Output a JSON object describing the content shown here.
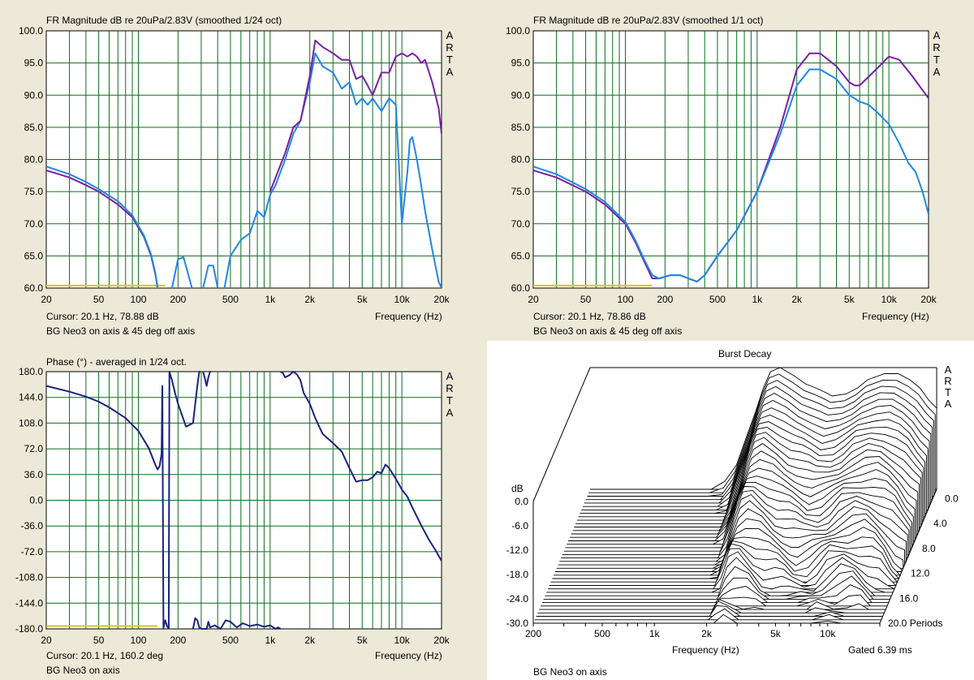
{
  "chart_data": [
    {
      "type": "line",
      "title": "FR Magnitude dB re 20uPa/2.83V (smoothed 1/24 oct)",
      "xlabel": "Frequency (Hz)",
      "ylabel": "",
      "x_scale": "log",
      "xlim": [
        20,
        20000
      ],
      "ylim": [
        60,
        100
      ],
      "x_ticks": [
        "20",
        "50",
        "100",
        "200",
        "500",
        "1k",
        "2k",
        "5k",
        "10k",
        "20k"
      ],
      "y_ticks": [
        "100.0",
        "95.0",
        "90.0",
        "85.0",
        "80.0",
        "75.0",
        "70.0",
        "65.0",
        "60.0"
      ],
      "brand": "A R T A",
      "cursor": "Cursor: 20.1 Hz, 78.88 dB",
      "caption": "BG Neo3 on axis & 45 deg off axis",
      "series": [
        {
          "color": "#7B1FA2",
          "x": [
            20,
            30,
            40,
            50,
            70,
            90,
            110,
            125,
            135,
            140
          ],
          "y": [
            78.3,
            77.2,
            76.0,
            75.0,
            73.0,
            71.0,
            68.0,
            65.0,
            62.0,
            60.0
          ]
        },
        {
          "color": "#1E88E5",
          "x": [
            20,
            30,
            40,
            50,
            70,
            90,
            110,
            125,
            135,
            140
          ],
          "y": [
            78.9,
            77.7,
            76.5,
            75.4,
            73.5,
            71.3,
            68.2,
            65.2,
            62.2,
            60.0
          ]
        },
        {
          "color": "#1E88E5",
          "x": [
            180,
            200,
            220,
            240,
            255
          ],
          "y": [
            60,
            64.5,
            64.8,
            62,
            60
          ]
        },
        {
          "color": "#1E88E5",
          "x": [
            310,
            340,
            370,
            400
          ],
          "y": [
            60,
            63.5,
            63.5,
            60
          ]
        },
        {
          "color": "#1E88E5",
          "x": [
            450,
            500,
            600,
            700,
            800,
            900,
            1000,
            1100,
            1300,
            1500,
            1700,
            2000,
            2200,
            2500,
            3000,
            3500,
            4000,
            4500,
            5000,
            5500,
            6000,
            7000,
            8000,
            8500,
            9000,
            10000,
            11000,
            11500,
            12000,
            13000,
            14000,
            15000,
            17000,
            19000,
            20000
          ],
          "y": [
            60,
            65,
            67.5,
            68.5,
            72,
            71,
            74.5,
            76,
            80,
            84,
            86,
            92,
            96.5,
            94.5,
            93.5,
            91,
            92,
            88.5,
            89.5,
            88.5,
            89.5,
            87.5,
            89.5,
            89,
            88.5,
            70,
            78,
            83,
            83.5,
            80,
            76,
            72,
            66,
            61,
            60
          ]
        },
        {
          "color": "#7B1FA2",
          "x": [
            1000,
            1300,
            1500,
            1700,
            2000,
            2200,
            2500,
            3000,
            3500,
            4000,
            4500,
            5000,
            5500,
            6000,
            7000,
            8000,
            9000,
            10000,
            11000,
            12000,
            13000,
            14000,
            15000,
            17000,
            19000,
            20000
          ],
          "y": [
            75,
            81,
            85,
            86,
            93,
            98.5,
            97.5,
            96.5,
            95.5,
            95.5,
            92.5,
            93,
            91.5,
            90,
            93.5,
            93.5,
            96,
            96.5,
            96,
            96.5,
            96,
            95,
            95.5,
            92,
            88,
            84
          ]
        }
      ],
      "reference_line": {
        "color": "#D4C71A",
        "x": [
          20,
          160
        ],
        "y": [
          60.4,
          60.4
        ]
      }
    },
    {
      "type": "line",
      "title": "FR Magnitude dB re 20uPa/2.83V (smoothed 1/1 oct)",
      "xlabel": "Frequency (Hz)",
      "ylabel": "",
      "x_scale": "log",
      "xlim": [
        20,
        20000
      ],
      "ylim": [
        60,
        100
      ],
      "x_ticks": [
        "20",
        "50",
        "100",
        "200",
        "500",
        "1k",
        "2k",
        "5k",
        "10k",
        "20k"
      ],
      "y_ticks": [
        "100.0",
        "95.0",
        "90.0",
        "85.0",
        "80.0",
        "75.0",
        "70.0",
        "65.0",
        "60.0"
      ],
      "brand": "A R T A",
      "cursor": "Cursor: 20.1 Hz, 78.86 dB",
      "caption": "BG Neo3 on axis & 45 deg off axis",
      "series": [
        {
          "color": "#7B1FA2",
          "x": [
            20,
            30,
            50,
            70,
            100,
            120,
            140,
            160,
            180,
            220,
            260,
            300,
            350,
            400,
            500,
            700,
            1000,
            1500,
            2000,
            2500,
            3000,
            4000,
            5000,
            5500,
            6000,
            8000,
            10000,
            12000,
            15000,
            20000
          ],
          "y": [
            78.3,
            77.2,
            75,
            73,
            70,
            67,
            64,
            61.5,
            61.5,
            62,
            62,
            61.5,
            61,
            62,
            65,
            69,
            75,
            85,
            94,
            96.5,
            96.5,
            94.5,
            92,
            91.5,
            91.5,
            94,
            96,
            95.5,
            93,
            89.5
          ]
        },
        {
          "color": "#1E88E5",
          "x": [
            20,
            30,
            50,
            70,
            100,
            120,
            140,
            160,
            180,
            220,
            260,
            300,
            350,
            400,
            500,
            700,
            1000,
            1500,
            2000,
            2500,
            3000,
            4000,
            5000,
            6000,
            7000,
            8000,
            10000,
            12000,
            14000,
            16000,
            18000,
            20000
          ],
          "y": [
            78.9,
            77.7,
            75.4,
            73.4,
            70.3,
            67.3,
            64.3,
            62,
            61.5,
            62,
            62,
            61.5,
            61,
            62,
            65,
            69,
            75,
            84,
            91.5,
            94,
            94,
            92.5,
            90,
            89,
            88.5,
            87.5,
            85.5,
            82.5,
            79.5,
            78,
            75,
            71.5
          ]
        }
      ],
      "reference_line": {
        "color": "#D4C71A",
        "x": [
          20,
          160
        ],
        "y": [
          60.4,
          60.4
        ]
      }
    },
    {
      "type": "line",
      "title": "Phase (°) - averaged in 1/24 oct.",
      "xlabel": "Frequency (Hz)",
      "ylabel": "",
      "x_scale": "log",
      "xlim": [
        20,
        20000
      ],
      "ylim": [
        -180,
        180
      ],
      "x_ticks": [
        "20",
        "50",
        "100",
        "200",
        "500",
        "1k",
        "2k",
        "5k",
        "10k",
        "20k"
      ],
      "y_ticks": [
        "180.0",
        "144.0",
        "108.0",
        "72.0",
        "36.0",
        "0.0",
        "-36.0",
        "-72.0",
        "-108.0",
        "-144.0",
        "-180.0"
      ],
      "brand": "A R T A",
      "cursor": "Cursor: 20.1 Hz, 160.2 deg",
      "caption": "BG Neo3 on axis",
      "series": [
        {
          "color": "#1A237E",
          "x": [
            20,
            30,
            40,
            50,
            60,
            80,
            100,
            120,
            135,
            140,
            145,
            150,
            152,
            155
          ],
          "y": [
            160,
            152,
            145,
            138,
            130,
            115,
            97,
            73,
            49,
            43,
            48,
            65,
            160,
            -180
          ]
        },
        {
          "color": "#1A237E",
          "x": [
            155,
            160,
            165,
            170
          ],
          "y": [
            -178,
            -168,
            -176,
            -180
          ]
        },
        {
          "color": "#1A237E",
          "x": [
            170,
            172,
            180,
            190,
            200,
            230,
            260,
            280,
            290,
            295
          ],
          "y": [
            -180,
            180,
            168,
            150,
            135,
            103,
            108,
            160,
            180,
            180
          ]
        },
        {
          "color": "#1A237E",
          "x": [
            310,
            320,
            330,
            340,
            350,
            355
          ],
          "y": [
            180,
            170,
            160,
            172,
            180,
            180
          ]
        },
        {
          "color": "#1A237E",
          "x": [
            260,
            270,
            280,
            290,
            300
          ],
          "y": [
            -180,
            -165,
            -168,
            -178,
            -180
          ]
        },
        {
          "color": "#1A237E",
          "x": [
            300,
            330,
            340,
            350,
            380,
            420,
            460,
            500,
            560,
            620,
            700,
            800,
            900,
            1000,
            1100,
            1150,
            1200
          ],
          "y": [
            -180,
            -180,
            -170,
            -178,
            -175,
            -180,
            -168,
            -170,
            -178,
            -172,
            -176,
            -174,
            -177,
            -175,
            -180,
            -178,
            -180
          ]
        },
        {
          "color": "#1A237E",
          "x": [
            1200,
            1250,
            1300,
            1400,
            1500,
            1600,
            1700,
            1800,
            2000,
            2200,
            2500,
            3000,
            3500,
            4000,
            4500,
            5000,
            5500,
            6000,
            6500,
            7000,
            7500,
            8000,
            9000,
            10000,
            11000,
            12000,
            14000,
            16000,
            18000,
            20000
          ],
          "y": [
            180,
            178,
            172,
            175,
            180,
            176,
            168,
            150,
            135,
            115,
            93,
            80,
            68,
            45,
            26,
            28,
            28,
            32,
            40,
            38,
            50,
            45,
            30,
            15,
            5,
            -10,
            -35,
            -55,
            -70,
            -85
          ]
        }
      ],
      "reference_line": {
        "color": "#D4C71A",
        "x": [
          20,
          140
        ],
        "y": [
          -176,
          -176
        ]
      }
    },
    {
      "type": "waterfall",
      "title": "Burst Decay",
      "xlabel": "Frequency (Hz)",
      "zlabel": "dB",
      "ylabel": "Periods",
      "x_scale": "log",
      "xlim": [
        200,
        20000
      ],
      "zlim": [
        -30,
        0
      ],
      "x_ticks": [
        "200",
        "500",
        "1k",
        "2k",
        "5k",
        "10k"
      ],
      "z_ticks": [
        "0.0",
        "-6.0",
        "-12.0",
        "-18.0",
        "-24.0",
        "-30.0"
      ],
      "y_ticks": [
        "0.0",
        "4.0",
        "8.0",
        "12.0",
        "16.0",
        "20.0 Periods"
      ],
      "brand": "A R T A",
      "gate": "Gated 6.39 ms",
      "caption": "BG Neo3 on axis",
      "slices": 40,
      "front_profile": {
        "x": [
          200,
          1000,
          1200,
          1400,
          1600,
          1800,
          2000,
          2200,
          2500,
          3000,
          3500,
          4000,
          4500,
          5000,
          6000,
          7000,
          8000,
          10000,
          12000,
          14000,
          16000,
          18000,
          20000
        ],
        "y": [
          -30,
          -30,
          -28,
          -24,
          -17,
          -11,
          -5,
          -1,
          0,
          -2,
          -4,
          -5,
          -6,
          -7,
          -6.5,
          -5,
          -3,
          -1.5,
          -1.5,
          -3,
          -5,
          -8,
          -10
        ]
      }
    }
  ]
}
